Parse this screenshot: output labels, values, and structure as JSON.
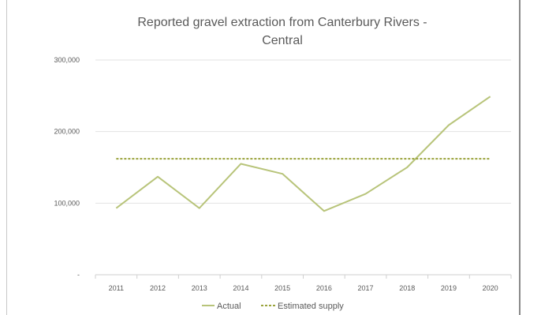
{
  "chart_data": {
    "type": "line",
    "title_lines": [
      "Reported gravel extraction from Canterbury Rivers -",
      "Central"
    ],
    "categories": [
      "2011",
      "2012",
      "2013",
      "2014",
      "2015",
      "2016",
      "2017",
      "2018",
      "2019",
      "2020"
    ],
    "y_ticks": [
      "-",
      "100,000",
      "200,000",
      "300,000"
    ],
    "ylim": [
      0,
      300000
    ],
    "grid": true,
    "legend_position": "bottom",
    "series": [
      {
        "name": "Actual",
        "style": "solid",
        "color": "#b8c47a",
        "values": [
          93000,
          137000,
          93000,
          155000,
          141000,
          89000,
          113000,
          150000,
          209000,
          249000
        ]
      },
      {
        "name": "Estimated supply",
        "style": "dashed",
        "color": "#9aa33c",
        "values": [
          162000,
          162000,
          162000,
          162000,
          162000,
          162000,
          162000,
          162000,
          162000,
          162000
        ]
      }
    ]
  }
}
